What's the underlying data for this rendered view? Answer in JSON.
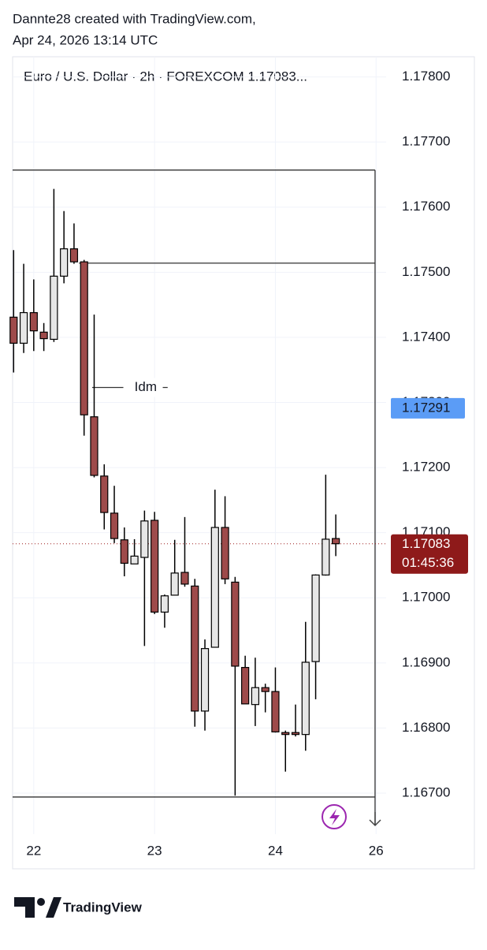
{
  "header": {
    "line1": "Dannte28 created with TradingView.com,",
    "line2": "Apr 24, 2026 13:14 UTC"
  },
  "chart_data": {
    "type": "candlestick",
    "title": "Euro / U.S. Dollar · 2h · FOREXCOM  1.17083...",
    "open": [
      1.17431,
      1.17391,
      1.17438,
      1.17408,
      1.17397,
      1.17494,
      1.17536,
      1.17516,
      1.17278,
      1.17187,
      1.1713,
      1.17089,
      1.17052,
      1.17062,
      1.17119,
      1.16978,
      1.17004,
      1.17039,
      1.17018,
      1.16826,
      1.16924,
      1.17108,
      1.17024,
      1.16893,
      1.16836,
      1.16862,
      1.16856,
      1.16793,
      1.16793,
      1.1679,
      1.16902,
      1.17035,
      1.17091
    ],
    "high": [
      1.17534,
      1.17513,
      1.17489,
      1.17422,
      1.17628,
      1.17594,
      1.17575,
      1.17519,
      1.17435,
      1.17205,
      1.17172,
      1.17108,
      1.1709,
      1.17134,
      1.17132,
      1.17005,
      1.17089,
      1.17124,
      1.17029,
      1.16936,
      1.17166,
      1.17156,
      1.17032,
      1.16911,
      1.16908,
      1.16868,
      1.16893,
      1.16796,
      1.16836,
      1.16963,
      1.17036,
      1.17189,
      1.17128
    ],
    "low": [
      1.17346,
      1.17376,
      1.17379,
      1.17379,
      1.17393,
      1.17483,
      1.17513,
      1.17249,
      1.17185,
      1.17105,
      1.17084,
      1.17033,
      1.17052,
      1.16926,
      1.16975,
      1.16954,
      1.17004,
      1.17017,
      1.16802,
      1.16796,
      1.16924,
      1.17021,
      1.16696,
      1.16837,
      1.16803,
      1.16824,
      1.16793,
      1.16733,
      1.16787,
      1.16765,
      1.16844,
      1.17034,
      1.17064
    ],
    "close": [
      1.17391,
      1.17438,
      1.1741,
      1.17398,
      1.17494,
      1.17536,
      1.17516,
      1.17281,
      1.17188,
      1.17131,
      1.17091,
      1.17053,
      1.17064,
      1.17118,
      1.16978,
      1.17003,
      1.17038,
      1.17021,
      1.16826,
      1.16922,
      1.17108,
      1.17029,
      1.16895,
      1.16837,
      1.16862,
      1.16856,
      1.16794,
      1.1679,
      1.1679,
      1.16901,
      1.17035,
      1.1709,
      1.17083
    ],
    "up_color": "#e6e6e6",
    "down_color": "#9e4b4b",
    "xlim": [
      -0.1,
      37
    ],
    "xticks": [
      {
        "value": 2,
        "label": "22"
      },
      {
        "value": 14,
        "label": "23"
      },
      {
        "value": 26,
        "label": "24"
      },
      {
        "value": 36,
        "label": "26"
      }
    ],
    "ylim": [
      1.16637,
      1.17831
    ],
    "yticks": [
      {
        "value": 1.178,
        "label": "1.17800"
      },
      {
        "value": 1.177,
        "label": "1.17700"
      },
      {
        "value": 1.176,
        "label": "1.17600"
      },
      {
        "value": 1.175,
        "label": "1.17500"
      },
      {
        "value": 1.174,
        "label": "1.17400"
      },
      {
        "value": 1.173,
        "label": "1.17300"
      },
      {
        "value": 1.172,
        "label": "1.17200"
      },
      {
        "value": 1.171,
        "label": "1.17100"
      },
      {
        "value": 1.17,
        "label": "1.17000"
      },
      {
        "value": 1.169,
        "label": "1.16900"
      },
      {
        "value": 1.168,
        "label": "1.16800"
      },
      {
        "value": 1.167,
        "label": "1.16700"
      }
    ],
    "grid": true,
    "levels": [
      1.17657,
      1.17514,
      1.16694
    ],
    "annotation": {
      "text": "Idm",
      "value": 1.17323
    },
    "marker_price": 1.17291,
    "last_price": 1.17083,
    "countdown": "01:45:36"
  },
  "footer": {
    "brand": "TradingView"
  }
}
